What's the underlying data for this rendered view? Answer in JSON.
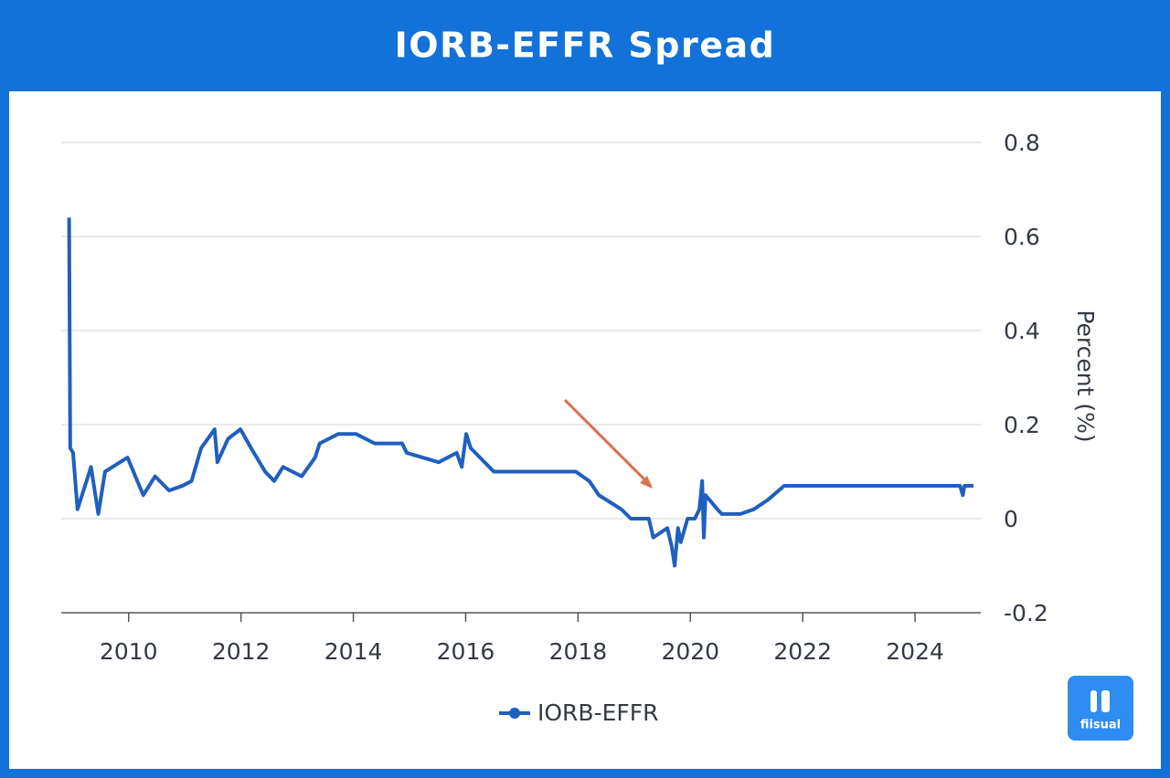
{
  "chart_data": {
    "type": "line",
    "title": "IORB-EFFR Spread",
    "y_label": "Percent (%)",
    "x": [
      2008.94,
      2008.96,
      2009.01,
      2009.09,
      2009.33,
      2009.46,
      2009.58,
      2009.98,
      2010.26,
      2010.47,
      2010.72,
      2010.96,
      2011.12,
      2011.29,
      2011.53,
      2011.58,
      2011.77,
      2011.99,
      2012.18,
      2012.43,
      2012.59,
      2012.75,
      2013.08,
      2013.32,
      2013.4,
      2013.73,
      2014.05,
      2014.38,
      2014.87,
      2014.95,
      2015.52,
      2015.84,
      2015.93,
      2016.01,
      2016.09,
      2016.5,
      2017.15,
      2017.96,
      2018.2,
      2018.37,
      2018.77,
      2018.94,
      2019.26,
      2019.34,
      2019.59,
      2019.67,
      2019.72,
      2019.78,
      2019.83,
      2019.95,
      2020.08,
      2020.16,
      2020.21,
      2020.24,
      2020.27,
      2020.48,
      2020.56,
      2020.89,
      2021.13,
      2021.38,
      2021.67,
      2024.8,
      2024.85,
      2024.88,
      2025.04
    ],
    "series": [
      {
        "name": "IORB-EFFR",
        "color": "#1f5fbf",
        "values": [
          0.64,
          0.15,
          0.14,
          0.02,
          0.11,
          0.01,
          0.1,
          0.13,
          0.05,
          0.09,
          0.06,
          0.07,
          0.08,
          0.15,
          0.19,
          0.12,
          0.17,
          0.19,
          0.15,
          0.1,
          0.08,
          0.11,
          0.09,
          0.13,
          0.16,
          0.18,
          0.18,
          0.16,
          0.16,
          0.14,
          0.12,
          0.14,
          0.11,
          0.18,
          0.15,
          0.1,
          0.1,
          0.1,
          0.08,
          0.05,
          0.02,
          0.0,
          0.0,
          -0.04,
          -0.02,
          -0.06,
          -0.1,
          -0.02,
          -0.05,
          0.0,
          0.0,
          0.02,
          0.08,
          -0.04,
          0.05,
          0.02,
          0.01,
          0.01,
          0.02,
          0.04,
          0.07,
          0.07,
          0.05,
          0.07,
          0.07
        ]
      }
    ],
    "xlim": [
      2008.8,
      2025.17
    ],
    "xticks": [
      2010,
      2012,
      2014,
      2016,
      2018,
      2020,
      2022,
      2024
    ],
    "ylim": [
      -0.2,
      0.8
    ],
    "yticks": [
      0.8,
      0.6,
      0.4,
      0.2,
      0,
      -0.2
    ],
    "grid": true
  },
  "watermark": "fiisual"
}
